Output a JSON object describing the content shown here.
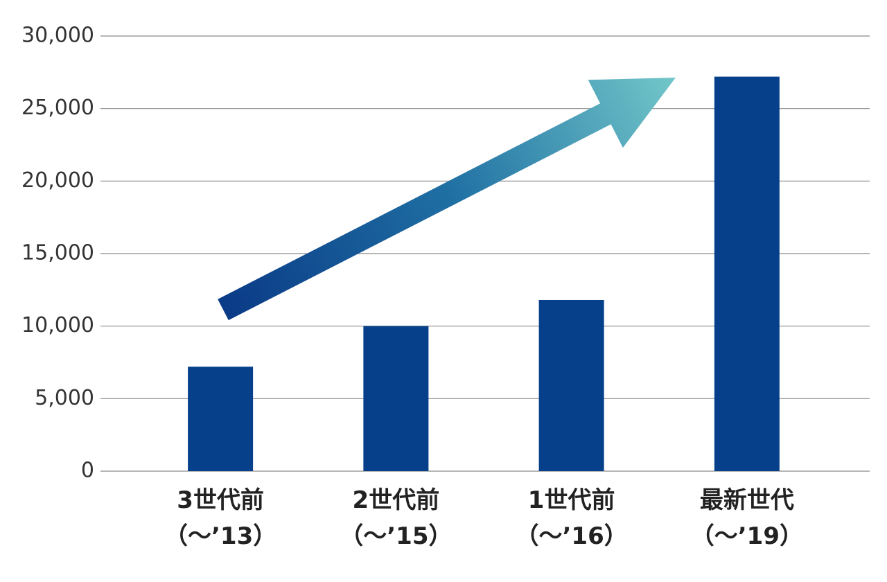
{
  "chart_data": {
    "type": "bar",
    "categories": [
      "3世代前\n（～’13）",
      "2世代前\n（～’15）",
      "1世代前\n（～’16）",
      "最新世代\n（～’19）"
    ],
    "values": [
      7200,
      10000,
      11800,
      27200
    ],
    "color": "#063f8a",
    "ylim": [
      0,
      30000
    ],
    "yticks": [
      0,
      {
        "value": 5000,
        "label": "5,000"
      },
      {
        "value": 10000,
        "label": "10,000"
      },
      {
        "value": 15000,
        "label": "15,000"
      },
      {
        "value": 20000,
        "label": "20,000"
      },
      {
        "value": 25000,
        "label": "25,000"
      },
      {
        "value": 30000,
        "label": "30,000"
      }
    ],
    "grid": true
  }
}
